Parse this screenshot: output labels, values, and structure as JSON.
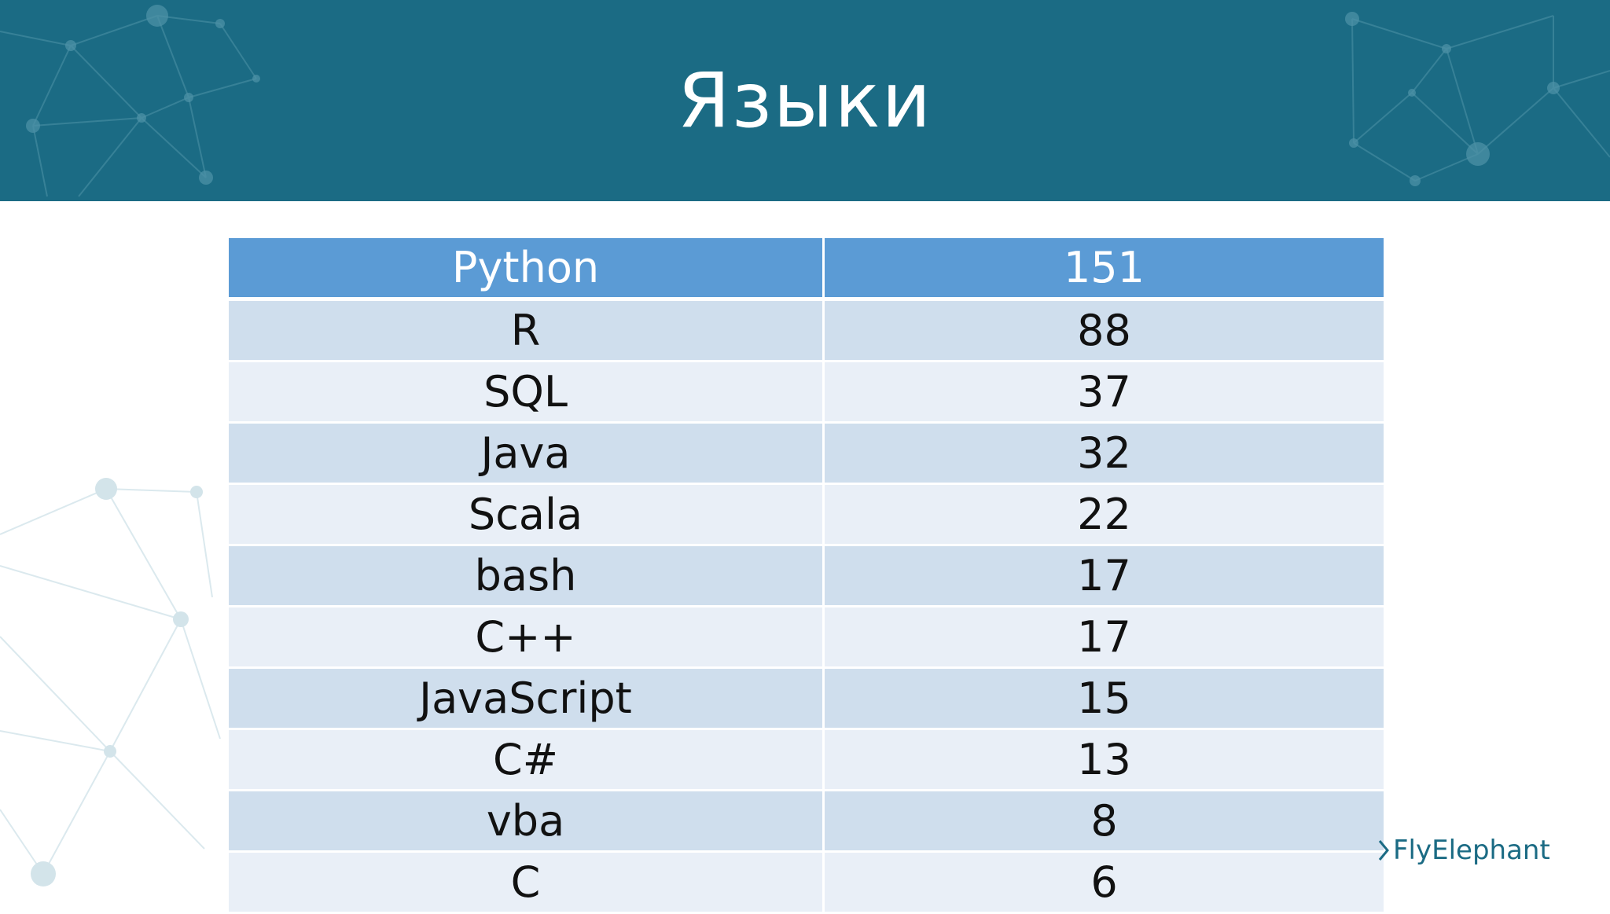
{
  "slide": {
    "title": "Языки"
  },
  "table": {
    "header": {
      "language": "Python",
      "count": "151"
    },
    "rows": [
      {
        "language": "R",
        "count": "88"
      },
      {
        "language": "SQL",
        "count": "37"
      },
      {
        "language": "Java",
        "count": "32"
      },
      {
        "language": "Scala",
        "count": "22"
      },
      {
        "language": "bash",
        "count": "17"
      },
      {
        "language": "C++",
        "count": "17"
      },
      {
        "language": "JavaScript",
        "count": "15"
      },
      {
        "language": "C#",
        "count": "13"
      },
      {
        "language": "vba",
        "count": "8"
      },
      {
        "language": "C",
        "count": "6"
      }
    ]
  },
  "brand": {
    "logo_text": "FlyElephant",
    "icon": "chevron-right-icon"
  },
  "colors": {
    "header_bg": "#1b6b84",
    "table_header_bg": "#5b9bd5",
    "row_dark": "#cfdeed",
    "row_light": "#e9eff7"
  }
}
